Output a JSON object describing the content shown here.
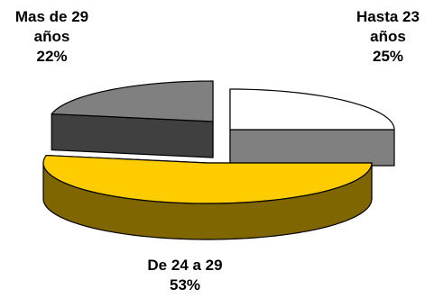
{
  "chart_data": {
    "type": "pie",
    "style": "3d-exploded",
    "legend": "none",
    "slices": [
      {
        "name": "Hasta 23 años",
        "value": 25,
        "label_lines": [
          "Hasta 23",
          "años",
          "25%"
        ],
        "top_color": "#ffffff",
        "side_color": "#808080"
      },
      {
        "name": "De 24 a 29",
        "value": 53,
        "label_lines": [
          "De 24 a 29",
          "53%"
        ],
        "top_color": "#ffcc00",
        "side_color": "#806600"
      },
      {
        "name": "Mas de 29 años",
        "value": 22,
        "label_lines": [
          "Mas de 29",
          "años",
          "22%"
        ],
        "top_color": "#808080",
        "side_color": "#404040"
      }
    ]
  }
}
